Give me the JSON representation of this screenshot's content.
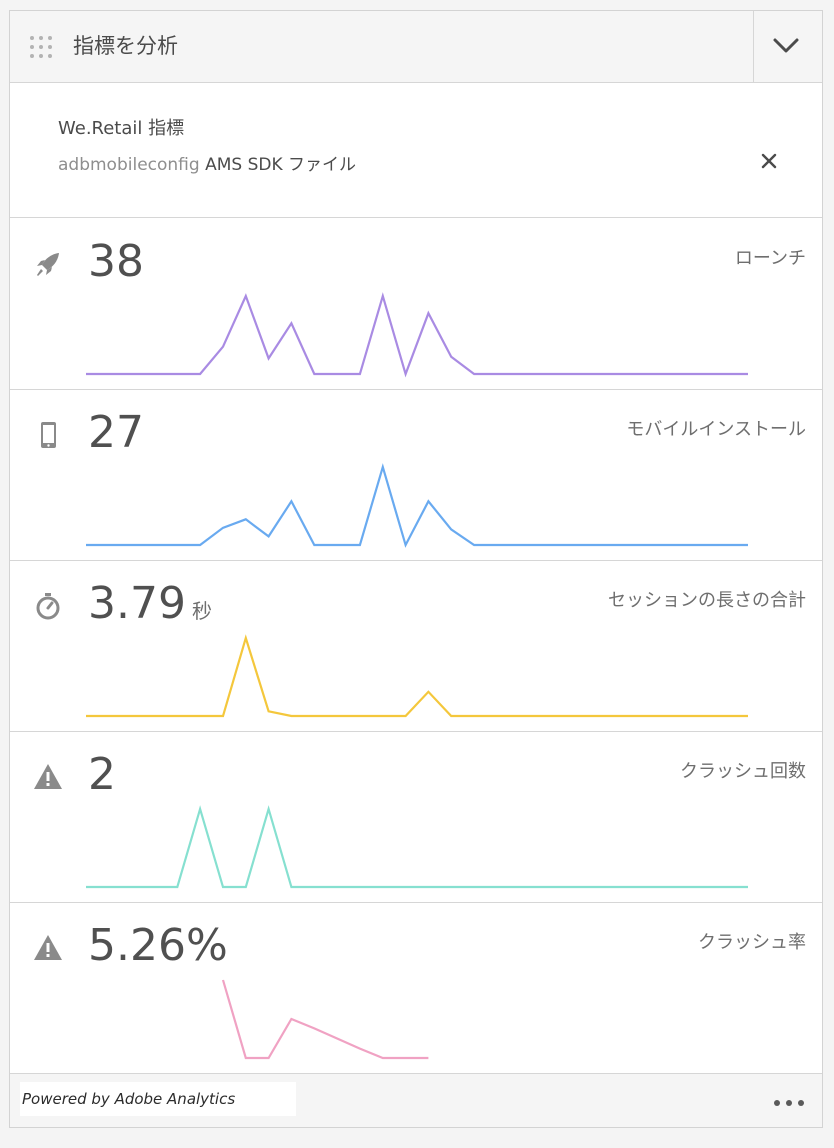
{
  "header": {
    "title": "指標を分析",
    "collapse_icon": "chevron-down-icon",
    "drag_icon": "drag-handle-icon"
  },
  "source": {
    "name": "We.Retail 指標",
    "config_prefix": "adbmobileconfig",
    "config_type": "AMS SDK ファイル",
    "close_icon": "close-icon"
  },
  "metrics": [
    {
      "value": "38",
      "unit": "",
      "label": "ローンチ",
      "icon": "rocket-icon",
      "color": "#a98be3",
      "trend": [
        0,
        0,
        0,
        0,
        0,
        0,
        0.35,
        1,
        0.2,
        0.65,
        0,
        0,
        0,
        1,
        0,
        0.78,
        0.22,
        0,
        0,
        0,
        0,
        0,
        0,
        0,
        0,
        0,
        0,
        0,
        0,
        0
      ]
    },
    {
      "value": "27",
      "unit": "",
      "label": "モバイルインストール",
      "icon": "mobile-device-icon",
      "color": "#69aaf0",
      "trend": [
        0,
        0,
        0,
        0,
        0,
        0,
        0.22,
        0.33,
        0.11,
        0.56,
        0,
        0,
        0,
        1,
        0,
        0.56,
        0.2,
        0,
        0,
        0,
        0,
        0,
        0,
        0,
        0,
        0,
        0,
        0,
        0,
        0
      ]
    },
    {
      "value": "3.79",
      "unit": "秒",
      "label": "セッションの長さの合計",
      "icon": "stopwatch-icon",
      "color": "#f4c73c",
      "trend": [
        0,
        0,
        0,
        0,
        0,
        0,
        0,
        1,
        0.06,
        0,
        0,
        0,
        0,
        0,
        0,
        0.31,
        0,
        0,
        0,
        0,
        0,
        0,
        0,
        0,
        0,
        0,
        0,
        0,
        0,
        0
      ]
    },
    {
      "value": "2",
      "unit": "",
      "label": "クラッシュ回数",
      "icon": "alert-icon",
      "color": "#86e0d0",
      "trend": [
        0,
        0,
        0,
        0,
        0,
        1,
        0,
        0,
        1,
        0,
        0,
        0,
        0,
        0,
        0,
        0,
        0,
        0,
        0,
        0,
        0,
        0,
        0,
        0,
        0,
        0,
        0,
        0,
        0,
        0
      ]
    },
    {
      "value": "5.26%",
      "unit": "",
      "label": "クラッシュ率",
      "icon": "alert-icon",
      "color": "#f0a2c3",
      "trend": [
        null,
        null,
        null,
        null,
        null,
        null,
        1,
        0,
        0,
        0.5,
        0.38,
        0.25,
        0.12,
        0,
        0,
        0,
        null,
        null,
        null,
        null,
        null,
        null,
        null,
        null,
        null,
        null,
        null,
        null,
        null,
        null
      ]
    }
  ],
  "footer": {
    "powered_by": "Powered by Adobe Analytics",
    "more_icon": "more-icon"
  }
}
